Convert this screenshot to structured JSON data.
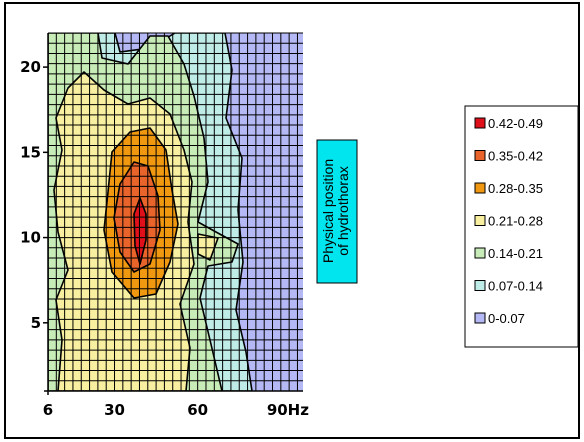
{
  "chart_data": {
    "type": "heatmap",
    "title": "",
    "xlabel": "",
    "ylabel": "",
    "xlim": [
      6,
      98
    ],
    "ylim": [
      1,
      22
    ],
    "x_ticks": [
      {
        "value": 6,
        "label": "6"
      },
      {
        "value": 30,
        "label": "30"
      },
      {
        "value": 60,
        "label": "60"
      },
      {
        "value": 90,
        "label": "90Hz"
      }
    ],
    "y_ticks": [
      {
        "value": 5,
        "label": "5"
      },
      {
        "value": 10,
        "label": "10"
      },
      {
        "value": 15,
        "label": "15"
      },
      {
        "value": 20,
        "label": "20"
      }
    ],
    "grid": true,
    "legend_position": "right",
    "annotation": {
      "lines": [
        "Physical position",
        "of hydrothorax"
      ],
      "color": "#00e5ee"
    },
    "levels": [
      {
        "label": "0.42-0.49",
        "color": "#e0101a"
      },
      {
        "label": "0.35-0.42",
        "color": "#e8642a"
      },
      {
        "label": "0.28-0.35",
        "color": "#f09810"
      },
      {
        "label": "0.21-0.28",
        "color": "#f8f0a0"
      },
      {
        "label": "0.14-0.21",
        "color": "#c8ecb8"
      },
      {
        "label": "0.07-0.14",
        "color": "#c0ece8"
      },
      {
        "label": "0-0.07",
        "color": "#b4b8f4"
      }
    ],
    "peak": {
      "x": 37,
      "y": 10
    }
  }
}
